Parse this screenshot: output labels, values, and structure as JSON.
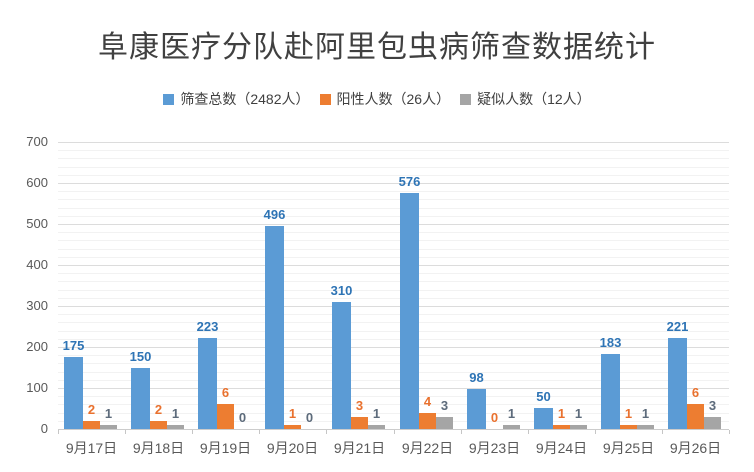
{
  "title": "阜康医疗分队赴阿里包虫病筛查数据统计",
  "legend": [
    {
      "label": "筛查总数（2482人）",
      "color": "#5b9bd5"
    },
    {
      "label": "阳性人数（26人）",
      "color": "#ed7d31"
    },
    {
      "label": "疑似人数（12人）",
      "color": "#a5a5a5"
    }
  ],
  "chart_data": {
    "type": "bar",
    "title": "阜康医疗分队赴阿里包虫病筛查数据统计",
    "categories": [
      "9月17日",
      "9月18日",
      "9月19日",
      "9月20日",
      "9月21日",
      "9月22日",
      "9月23日",
      "9月24日",
      "9月25日",
      "9月26日"
    ],
    "series": [
      {
        "name": "筛查总数（2482人）",
        "axis": "primary",
        "color": "#5b9bd5",
        "label_color": "#2e74b5",
        "values": [
          175,
          150,
          223,
          496,
          310,
          576,
          98,
          50,
          183,
          221
        ],
        "total": 2482
      },
      {
        "name": "阳性人数（26人）",
        "axis": "secondary",
        "color": "#ed7d31",
        "label_color": "#e9712e",
        "values": [
          2,
          2,
          6,
          1,
          3,
          4,
          0,
          1,
          1,
          6
        ],
        "total": 26
      },
      {
        "name": "疑似人数（12人）",
        "axis": "secondary",
        "color": "#a5a5a5",
        "label_color": "#5d6b7b",
        "values": [
          1,
          1,
          0,
          0,
          1,
          3,
          1,
          1,
          1,
          3
        ],
        "total": 12
      }
    ],
    "y_axis": {
      "min": 0,
      "max": 700,
      "major_step": 100,
      "minor_step": 20,
      "ticks": [
        "0",
        "100",
        "200",
        "300",
        "400",
        "500",
        "600",
        "700"
      ]
    },
    "secondary_y_axis": {
      "min": 0,
      "max": 70,
      "visible": false
    },
    "grid": true,
    "legend_position": "top",
    "data_labels": true
  }
}
